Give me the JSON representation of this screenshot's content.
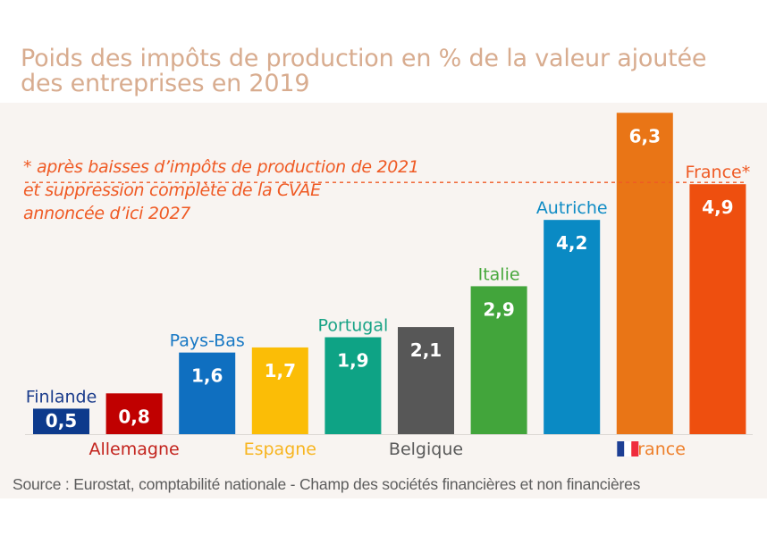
{
  "chart_data": {
    "type": "bar",
    "title": "Poids des impôts de production en % de la valeur ajoutée des entreprises en 2019",
    "xlabel": "",
    "ylabel": "",
    "ylim": [
      0,
      6.3
    ],
    "grid": false,
    "categories": [
      "Finlande",
      "Allemagne",
      "Pays-Bas",
      "Espagne",
      "Portugal",
      "Belgique",
      "Italie",
      "Autriche",
      "France",
      "France*"
    ],
    "values": [
      0.5,
      0.8,
      1.6,
      1.7,
      1.9,
      2.1,
      2.9,
      4.2,
      6.3,
      4.9
    ],
    "value_labels": [
      "0,5",
      "0,8",
      "1,6",
      "1,7",
      "1,9",
      "2,1",
      "2,9",
      "4,2",
      "6,3",
      "4,9"
    ],
    "bar_colors": [
      "#0d3a8c",
      "#c00000",
      "#0f6fc0",
      "#fbbd06",
      "#0ea385",
      "#575757",
      "#42a53b",
      "#0a8ac4",
      "#e97516",
      "#ee4f0f"
    ],
    "label_colors": [
      "#1b3c8c",
      "#c3231d",
      "#1878c4",
      "#f7b520",
      "#18a386",
      "#595959",
      "#47a83c",
      "#0f8cc5",
      "#ee7f2a",
      "#ef5a24"
    ],
    "label_positions": [
      "above",
      "below",
      "above",
      "below",
      "above",
      "below",
      "above",
      "above",
      "below",
      "above"
    ],
    "reference_line": {
      "value": 4.9,
      "style": "dotted",
      "color": "#ef5a24"
    },
    "annotation": [
      "* après baisses d’impôts de production de 2021",
      "et suppression complète de la CVAE",
      "annoncée d’ici 2027"
    ],
    "source": "Source : Eurostat, comptabilité nationale - Champ des sociétés financières et non financières"
  },
  "flag_icon": "french-flag",
  "flag_colors": [
    "#1d3f94",
    "#ffffff",
    "#ef2b3d"
  ]
}
